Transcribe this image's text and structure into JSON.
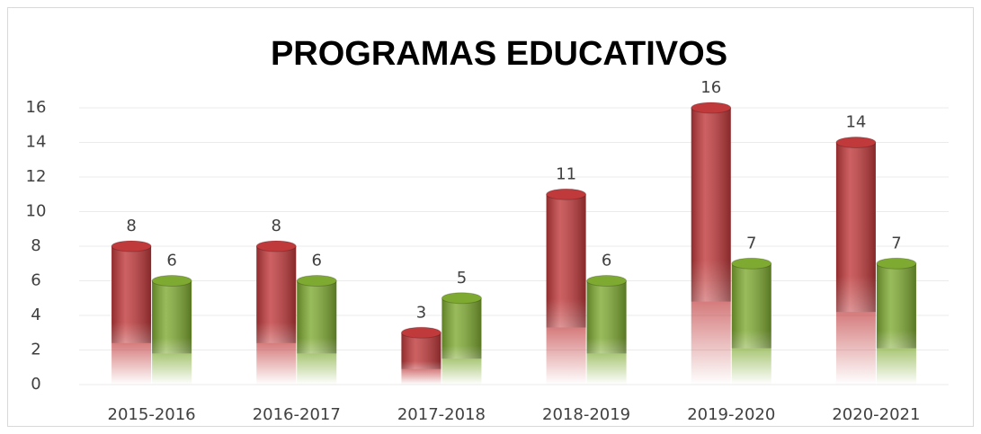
{
  "chart_data": {
    "type": "bar",
    "title": "PROGRAMAS EDUCATIVOS",
    "categories": [
      "2015-2016",
      "2016-2017",
      "2017-2018",
      "2018-2019",
      "2019-2020",
      "2020-2021"
    ],
    "series": [
      {
        "color": "#c0393b",
        "values": [
          8,
          8,
          3,
          11,
          16,
          14
        ]
      },
      {
        "color": "#7faa32",
        "values": [
          6,
          6,
          5,
          6,
          7,
          7
        ]
      }
    ],
    "ylim": [
      0,
      16
    ],
    "yticks": [
      0,
      2,
      4,
      6,
      8,
      10,
      12,
      14,
      16
    ],
    "grid": true
  }
}
